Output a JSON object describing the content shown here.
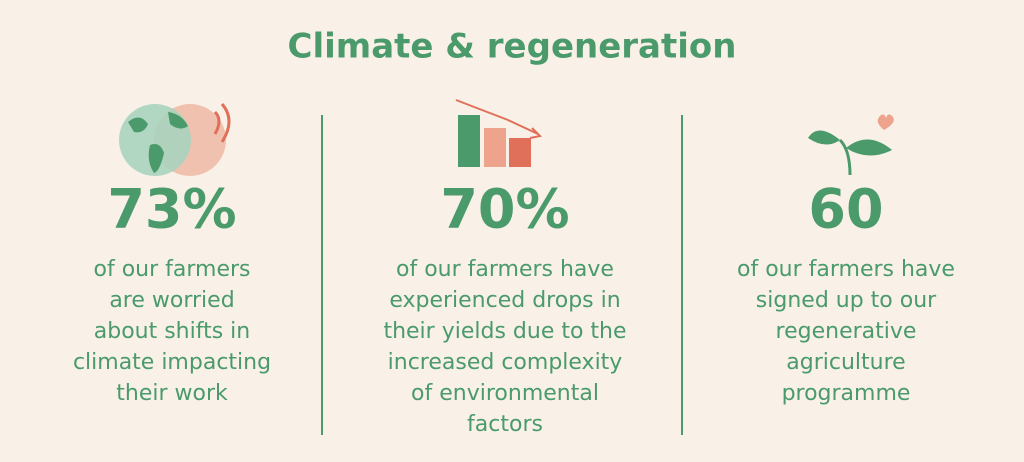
{
  "title": "Climate & regeneration",
  "stats": [
    {
      "value": "73%",
      "lines": [
        "of our farmers",
        "are worried",
        "about shifts in",
        "climate impacting",
        "their work"
      ]
    },
    {
      "value": "70%",
      "lines": [
        "of our farmers have",
        "experienced drops in",
        "their yields due to the",
        "increased complexity",
        "of environmental",
        "factors"
      ]
    },
    {
      "value": "60",
      "lines": [
        "of our farmers have",
        "signed up to our",
        "regenerative",
        "agriculture",
        "programme"
      ]
    }
  ]
}
